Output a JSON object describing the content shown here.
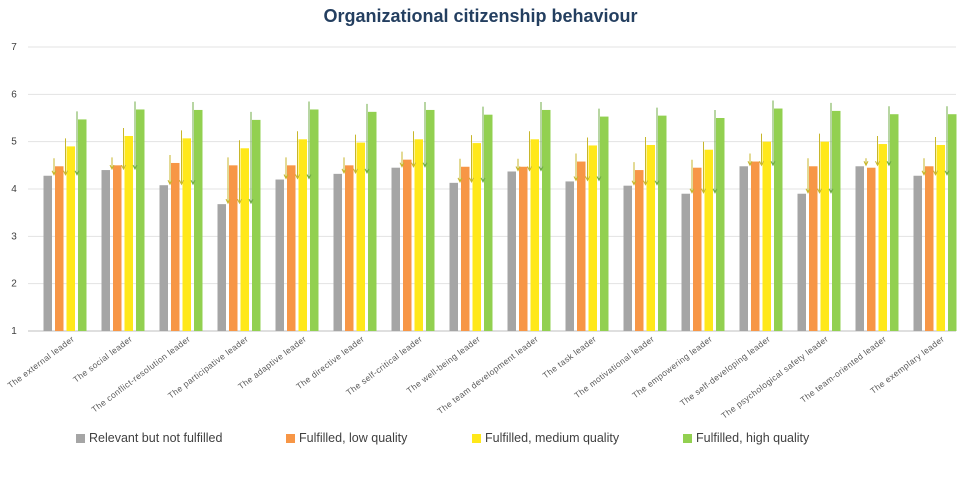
{
  "chart_data": {
    "type": "bar",
    "title": "Organizational citizenship behaviour",
    "xlabel": "",
    "ylabel": "",
    "ylim": [
      1,
      7
    ],
    "yticks": [
      1,
      2,
      3,
      4,
      5,
      6,
      7
    ],
    "grid": true,
    "legend_position": "bottom",
    "categories": [
      "The external leader",
      "The social leader",
      "The conflict-resolution leader",
      "The participative leader",
      "The adaptive leader",
      "The directive leader",
      "The self-critical leader",
      "The well-being leader",
      "The team development leader",
      "The task leader",
      "The motivational leader",
      "The empowering leader",
      "The self-developing leader",
      "The psychological safety leader",
      "The team-oriented leader",
      "The exemplary leader"
    ],
    "series": [
      {
        "name": "Relevant but not fulfilled",
        "color": "#a5a5a5",
        "values": [
          4.28,
          4.4,
          4.08,
          3.68,
          4.2,
          4.32,
          4.45,
          4.13,
          4.37,
          4.16,
          4.07,
          3.9,
          4.48,
          3.9,
          4.48,
          4.28
        ]
      },
      {
        "name": "Fulfilled, low quality",
        "color": "#f79646",
        "values": [
          4.48,
          4.5,
          4.55,
          4.5,
          4.5,
          4.5,
          4.62,
          4.47,
          4.47,
          4.58,
          4.4,
          4.45,
          4.58,
          4.48,
          4.45,
          4.48
        ]
      },
      {
        "name": "Fulfilled, medium quality",
        "color": "#ffe81a",
        "values": [
          4.9,
          5.12,
          5.07,
          4.86,
          5.05,
          4.98,
          5.05,
          4.97,
          5.05,
          4.92,
          4.93,
          4.83,
          5.0,
          5.0,
          4.95,
          4.93
        ]
      },
      {
        "name": "Fulfilled, high quality",
        "color": "#92d050",
        "values": [
          5.47,
          5.68,
          5.67,
          5.46,
          5.68,
          5.63,
          5.67,
          5.57,
          5.67,
          5.53,
          5.55,
          5.5,
          5.7,
          5.65,
          5.58,
          5.58
        ]
      }
    ]
  }
}
